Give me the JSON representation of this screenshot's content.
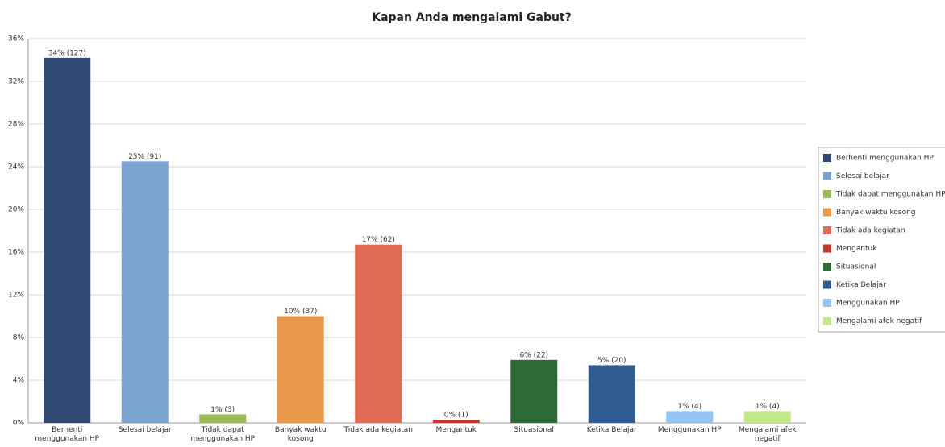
{
  "chart_data": {
    "type": "bar",
    "title": "Kapan Anda mengalami Gabut?",
    "categories": [
      "Berhenti menggunakan HP",
      "Selesai belajar",
      "Tidak dapat menggunakan HP",
      "Banyak waktu kosong",
      "Tidak ada kegiatan",
      "Mengantuk",
      "Situasional",
      "Ketika Belajar",
      "Menggunakan HP",
      "Mengalami afek negatif"
    ],
    "values": [
      34.2,
      24.5,
      0.8,
      10.0,
      16.7,
      0.3,
      5.9,
      5.4,
      1.1,
      1.1
    ],
    "value_labels": [
      "34% (127)",
      "25% (91)",
      "1% (3)",
      "10% (37)",
      "17% (62)",
      "0% (1)",
      "6% (22)",
      "5% (20)",
      "1% (4)",
      "1% (4)"
    ],
    "colors": [
      "#2e4a73",
      "#7ba3d0",
      "#9bbb59",
      "#e8994c",
      "#e06b55",
      "#c0392b",
      "#2e6b34",
      "#2f5d92",
      "#92c5ef",
      "#c3e88a"
    ],
    "ylim": [
      0,
      36
    ],
    "yticks": [
      {
        "value": 0,
        "label": "0%"
      },
      {
        "value": 4,
        "label": "4%"
      },
      {
        "value": 8,
        "label": "8%"
      },
      {
        "value": 12,
        "label": "12%"
      },
      {
        "value": 16,
        "label": "16%"
      },
      {
        "value": 20,
        "label": "20%"
      },
      {
        "value": 24,
        "label": "24%"
      },
      {
        "value": 28,
        "label": "28%"
      },
      {
        "value": 32,
        "label": "32%"
      },
      {
        "value": 36,
        "label": "36%"
      }
    ],
    "grid": true,
    "legend": "right"
  }
}
